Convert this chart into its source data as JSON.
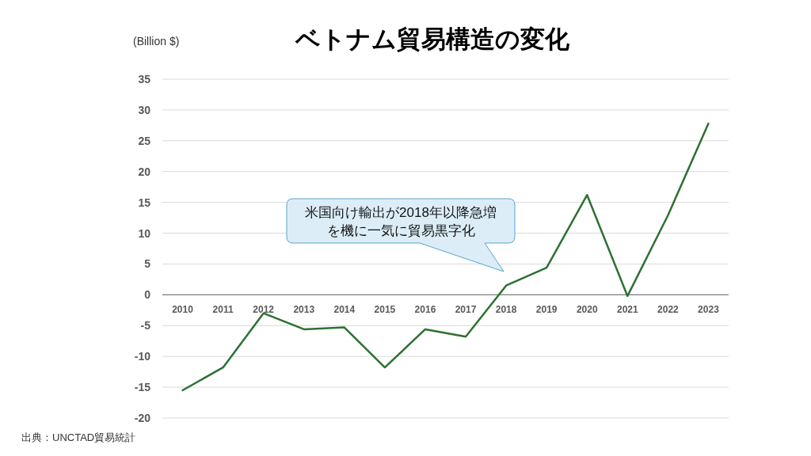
{
  "chart_data": {
    "type": "line",
    "title": "ベトナム貿易構造の変化",
    "ylabel": "(Billion $)",
    "categories": [
      "2010",
      "2011",
      "2012",
      "2013",
      "2014",
      "2015",
      "2016",
      "2017",
      "2018",
      "2019",
      "2020",
      "2021",
      "2022",
      "2023"
    ],
    "series": [
      {
        "color": "#2e7032",
        "values": [
          -15.5,
          -11.8,
          -3.0,
          -5.6,
          -5.3,
          -11.8,
          -5.6,
          -6.8,
          1.5,
          4.4,
          16.2,
          -0.2,
          12.9,
          27.8
        ]
      }
    ],
    "ylim": [
      -20,
      35
    ],
    "yticks": [
      -20,
      -15,
      -10,
      -5,
      0,
      5,
      10,
      15,
      20,
      25,
      30,
      35
    ],
    "grid": "y",
    "marker": "none",
    "line_style": "solid",
    "annotations": [
      "米国向け輸出が2018年以降急増を機に一気に貿易黒字化",
      "出典：UNCTAD貿易統計"
    ]
  }
}
